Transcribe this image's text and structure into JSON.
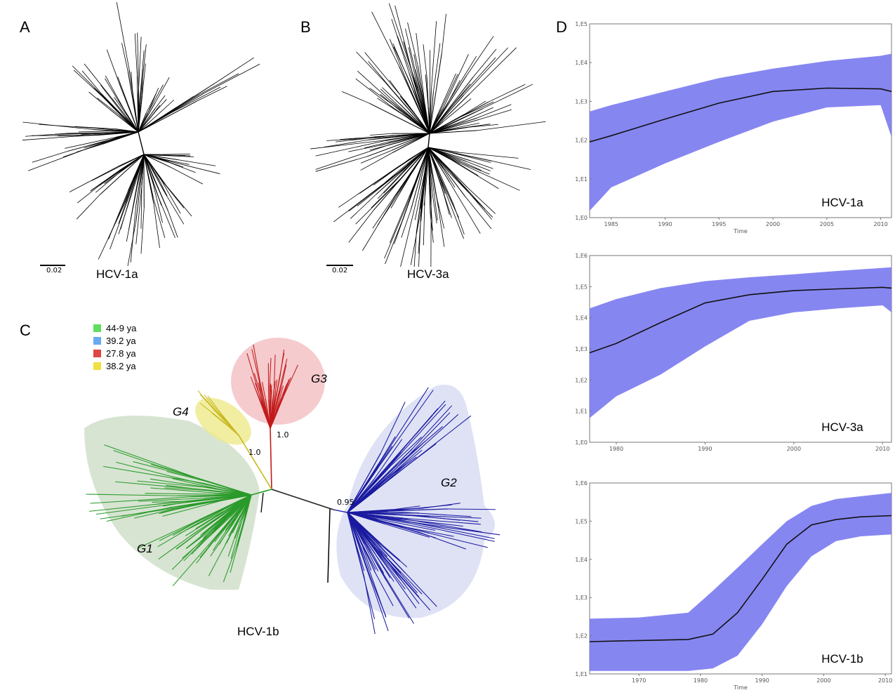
{
  "panels": {
    "a": {
      "letter": "A",
      "label": "HCV-1a",
      "scale": "0.02"
    },
    "b": {
      "letter": "B",
      "label": "HCV-3a",
      "scale": "0.02"
    },
    "c": {
      "letter": "C",
      "label": "HCV-1b",
      "groups": [
        "G1",
        "G2",
        "G3",
        "G4"
      ],
      "support": [
        "1.0",
        "1.0",
        "0.95"
      ],
      "legend": [
        {
          "label": "44-9 ya",
          "color": "#5ee05e"
        },
        {
          "label": "39.2 ya",
          "color": "#6aaaf0"
        },
        {
          "label": "27.8 ya",
          "color": "#e04545"
        },
        {
          "label": "38.2 ya",
          "color": "#f0e040"
        }
      ]
    },
    "d": {
      "letter": "D"
    }
  },
  "chart_data": [
    {
      "type": "area",
      "title": "HCV-1a",
      "xlabel": "Time",
      "xlim": [
        1983,
        2011
      ],
      "xticks": [
        "1985",
        "1990",
        "1995",
        "2000",
        "2005",
        "2010"
      ],
      "ylog": true,
      "ylim": [
        1,
        100000
      ],
      "yticks": [
        "1,E0",
        "1,E1",
        "1,E2",
        "1,E3",
        "1,E4",
        "1,E5"
      ],
      "x": [
        1983,
        1985,
        1990,
        1995,
        2000,
        2005,
        2010,
        2011
      ],
      "median": [
        90,
        130,
        350,
        900,
        1800,
        2200,
        2100,
        1800
      ],
      "lower": [
        1.5,
        6,
        25,
        90,
        300,
        700,
        800,
        120
      ],
      "upper": [
        550,
        800,
        1800,
        4000,
        7000,
        11000,
        15000,
        17000
      ]
    },
    {
      "type": "area",
      "title": "HCV-3a",
      "xlabel": "",
      "xlim": [
        1977,
        2011
      ],
      "xticks": [
        "1980",
        "1990",
        "2000",
        "2010"
      ],
      "ylog": true,
      "ylim": [
        1,
        1000000
      ],
      "yticks": [
        "1,E0",
        "1,E1",
        "1,E2",
        "1,E3",
        "1,E4",
        "1,E5",
        "1,E6"
      ],
      "x": [
        1977,
        1980,
        1985,
        1990,
        1995,
        2000,
        2005,
        2010,
        2011
      ],
      "median": [
        750,
        1500,
        7000,
        30000,
        55000,
        75000,
        85000,
        95000,
        90000
      ],
      "lower": [
        6,
        30,
        150,
        1200,
        8000,
        15000,
        20000,
        25000,
        15000
      ],
      "upper": [
        20000,
        40000,
        90000,
        150000,
        200000,
        250000,
        320000,
        400000,
        420000
      ]
    },
    {
      "type": "area",
      "title": "HCV-1b",
      "xlabel": "Time",
      "xlim": [
        1962,
        2011
      ],
      "xticks": [
        "1970",
        "1980",
        "1990",
        "2000",
        "2010"
      ],
      "ylog": true,
      "ylim": [
        10,
        1000000
      ],
      "yticks": [
        "1,E1",
        "1,E2",
        "1,E3",
        "1,E4",
        "1,E5",
        "1,E6"
      ],
      "x": [
        1962,
        1970,
        1978,
        1982,
        1986,
        1990,
        1994,
        1998,
        2002,
        2006,
        2011
      ],
      "median": [
        70,
        75,
        80,
        110,
        400,
        3000,
        25000,
        80000,
        110000,
        130000,
        140000
      ],
      "lower": [
        12,
        12,
        12,
        14,
        30,
        200,
        2000,
        12000,
        30000,
        40000,
        45000
      ],
      "upper": [
        280,
        300,
        400,
        1500,
        6000,
        25000,
        100000,
        250000,
        380000,
        450000,
        550000
      ]
    }
  ]
}
